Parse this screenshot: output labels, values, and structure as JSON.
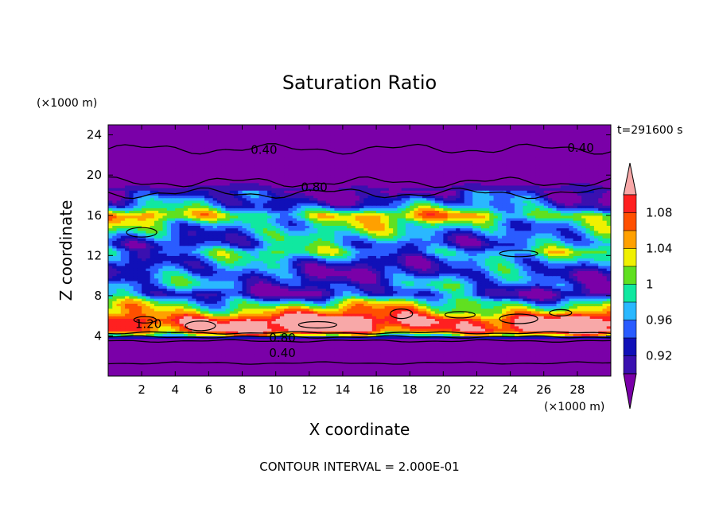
{
  "chart_data": {
    "type": "heatmap",
    "title": "Saturation Ratio",
    "xlabel": "X coordinate",
    "ylabel": "Z coordinate",
    "x_unit": "(×1000 m)",
    "y_unit": "(×1000 m)",
    "time_label": "t=291600 s",
    "footer": "CONTOUR INTERVAL = 2.000E-01",
    "xlim": [
      0,
      30
    ],
    "ylim": [
      0,
      25
    ],
    "x_ticks": [
      2,
      4,
      6,
      8,
      10,
      12,
      14,
      16,
      18,
      20,
      22,
      24,
      26,
      28
    ],
    "y_ticks": [
      4,
      8,
      12,
      16,
      20,
      24
    ],
    "colorbar": {
      "labels": [
        "1.08",
        "1.04",
        "1",
        "0.96",
        "0.92"
      ],
      "levels": [
        0.9,
        0.92,
        0.94,
        0.96,
        0.98,
        1.0,
        1.02,
        1.04,
        1.06,
        1.08,
        1.1
      ],
      "colors": [
        "#7a00a8",
        "#3a10b0",
        "#1010b8",
        "#2a5cff",
        "#2ab8ff",
        "#10e8a0",
        "#60e020",
        "#f0f000",
        "#ffa000",
        "#ff5000",
        "#ff2020",
        "#f8a8a8"
      ]
    },
    "contour_labels": [
      {
        "text": "0.40",
        "x": 9.3,
        "z": 22.5
      },
      {
        "text": "0.40",
        "x": 28.2,
        "z": 22.7
      },
      {
        "text": "0.80",
        "x": 12.3,
        "z": 18.8
      },
      {
        "text": "1.20",
        "x": 2.4,
        "z": 5.2
      },
      {
        "text": "0.80",
        "x": 10.4,
        "z": 3.8
      },
      {
        "text": "0.40",
        "x": 10.4,
        "z": 2.3
      }
    ],
    "bands": [
      {
        "z": 24.5,
        "v": 0.88
      },
      {
        "z": 22.0,
        "v": 0.88
      },
      {
        "z": 19.5,
        "v": 0.89
      },
      {
        "z": 18.2,
        "v": 0.91
      },
      {
        "z": 17.0,
        "v": 0.95
      },
      {
        "z": 16.0,
        "v": 1.03
      },
      {
        "z": 15.2,
        "v": 0.99
      },
      {
        "z": 14.3,
        "v": 0.97
      },
      {
        "z": 13.2,
        "v": 0.95
      },
      {
        "z": 12.4,
        "v": 0.98
      },
      {
        "z": 11.3,
        "v": 0.94
      },
      {
        "z": 10.3,
        "v": 0.93
      },
      {
        "z": 9.2,
        "v": 0.95
      },
      {
        "z": 8.2,
        "v": 0.92
      },
      {
        "z": 7.3,
        "v": 1.0
      },
      {
        "z": 6.4,
        "v": 1.05
      },
      {
        "z": 5.5,
        "v": 1.12
      },
      {
        "z": 4.6,
        "v": 1.1
      },
      {
        "z": 4.0,
        "v": 1.0
      },
      {
        "z": 3.8,
        "v": 0.88
      },
      {
        "z": 0.0,
        "v": 0.88
      }
    ]
  }
}
